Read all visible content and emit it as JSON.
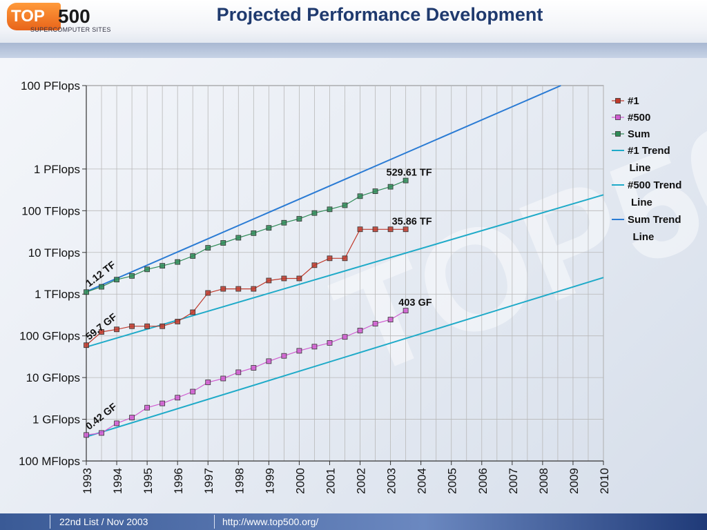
{
  "logo": {
    "brand_top": "TOP",
    "brand_num": "500",
    "subtitle": "SUPERCOMPUTER SITES"
  },
  "page_title": "Projected Performance Development",
  "footer": {
    "list": "22nd List / Nov 2003",
    "url": "http://www.top500.org/"
  },
  "colors": {
    "n1": "#c0392b",
    "n500": "#d05cd0",
    "sum": "#2e8b57",
    "trend_cyan": "#1eaac8",
    "trend_blue": "#2a7bd4"
  },
  "chart_data": {
    "type": "line",
    "title": "Projected Performance Development",
    "y_scale": "log",
    "ylim_gflops": [
      0.1,
      100000000
    ],
    "y_ticks": [
      {
        "value": 0.1,
        "label": "100 MFlops"
      },
      {
        "value": 1,
        "label": "1 GFlops"
      },
      {
        "value": 10,
        "label": "10 GFlops"
      },
      {
        "value": 100,
        "label": "100 GFlops"
      },
      {
        "value": 1000,
        "label": "1 TFlops"
      },
      {
        "value": 10000,
        "label": "10 TFlops"
      },
      {
        "value": 100000,
        "label": "100 TFlops"
      },
      {
        "value": 1000000,
        "label": "1 PFlops"
      },
      {
        "value": 100000000,
        "label": "100 PFlops"
      }
    ],
    "x_range": [
      1993,
      2010
    ],
    "x_ticks": [
      "1993",
      "1994",
      "1995",
      "1996",
      "1997",
      "1998",
      "1999",
      "2000",
      "2001",
      "2002",
      "2003",
      "2004",
      "2005",
      "2006",
      "2007",
      "2008",
      "2009",
      "2010"
    ],
    "grid": true,
    "legend_position": "right",
    "x": [
      1993.0,
      1993.5,
      1994.0,
      1994.5,
      1995.0,
      1995.5,
      1996.0,
      1996.5,
      1997.0,
      1997.5,
      1998.0,
      1998.5,
      1999.0,
      1999.5,
      2000.0,
      2000.5,
      2001.0,
      2001.5,
      2002.0,
      2002.5,
      2003.0,
      2003.5
    ],
    "series": [
      {
        "name": "#1",
        "color": "#c0392b",
        "values": [
          59.7,
          124,
          143,
          170,
          170,
          170,
          220,
          368,
          1068,
          1338,
          1338,
          1338,
          2121,
          2379,
          2379,
          4938,
          7226,
          7226,
          35860,
          35860,
          35860,
          35860
        ]
      },
      {
        "name": "#500",
        "color": "#d05cd0",
        "values": [
          0.42,
          0.47,
          0.8,
          1.1,
          1.9,
          2.4,
          3.3,
          4.6,
          7.7,
          9.5,
          13.4,
          17.1,
          24.7,
          33.1,
          43.8,
          55.1,
          67.8,
          94.3,
          134,
          196,
          245,
          403
        ]
      },
      {
        "name": "Sum",
        "color": "#2e8b57",
        "values": [
          1120,
          1500,
          2230,
          2730,
          3930,
          4780,
          5900,
          8200,
          12900,
          16900,
          22500,
          29000,
          38800,
          51500,
          64000,
          88000,
          108000,
          135000,
          223000,
          293000,
          375000,
          529610
        ]
      }
    ],
    "trend_lines": [
      {
        "name": "#1 Trend Line",
        "color": "#1eaac8",
        "x": [
          1993,
          2010
        ],
        "values": [
          54,
          240000
        ]
      },
      {
        "name": "#500 Trend Line",
        "color": "#1eaac8",
        "x": [
          1993,
          2010
        ],
        "values": [
          0.38,
          2500
        ]
      },
      {
        "name": "Sum Trend Line",
        "color": "#2a7bd4",
        "x": [
          1993,
          2008.6
        ],
        "values": [
          1150,
          100000000
        ]
      }
    ],
    "legend": [
      {
        "label1": "#1",
        "label2": "",
        "kind": "marker",
        "color": "#c0392b"
      },
      {
        "label1": "#500",
        "label2": "",
        "kind": "marker",
        "color": "#d05cd0"
      },
      {
        "label1": "Sum",
        "label2": "",
        "kind": "marker",
        "color": "#2e8b57"
      },
      {
        "label1": "#1 Trend",
        "label2": "Line",
        "kind": "line",
        "color": "#1eaac8"
      },
      {
        "label1": "#500 Trend",
        "label2": "Line",
        "kind": "line",
        "color": "#1eaac8"
      },
      {
        "label1": "Sum Trend",
        "label2": "Line",
        "kind": "line",
        "color": "#2a7bd4"
      }
    ],
    "annotations": [
      {
        "text": "1.12 TF",
        "x": 1993.0,
        "y": 1120,
        "rotate": -38,
        "anchor": "start"
      },
      {
        "text": "59.7 GF",
        "x": 1993.0,
        "y": 59.7,
        "rotate": -38,
        "anchor": "start"
      },
      {
        "text": "0.42 GF",
        "x": 1993.0,
        "y": 0.42,
        "rotate": -38,
        "anchor": "start"
      },
      {
        "text": "529.61 TF",
        "x": 2003.5,
        "y": 529610,
        "rotate": 0,
        "anchor": "end"
      },
      {
        "text": "35.86 TF",
        "x": 2003.5,
        "y": 35860,
        "rotate": 0,
        "anchor": "end"
      },
      {
        "text": "403 GF",
        "x": 2003.5,
        "y": 403,
        "rotate": 0,
        "anchor": "end"
      }
    ]
  }
}
